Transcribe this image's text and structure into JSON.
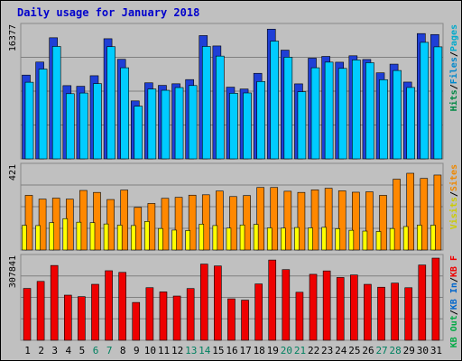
{
  "chart_data": [
    {
      "type": "bar",
      "title": "Daily usage for January 2018",
      "categories": [
        "1",
        "2",
        "3",
        "4",
        "5",
        "6",
        "7",
        "8",
        "9",
        "10",
        "11",
        "12",
        "13",
        "14",
        "15",
        "16",
        "17",
        "18",
        "19",
        "20",
        "21",
        "22",
        "23",
        "24",
        "25",
        "26",
        "27",
        "28",
        "29",
        "30",
        "31"
      ],
      "weekend_indices": [
        5,
        6,
        12,
        13,
        19,
        20,
        26,
        27
      ],
      "ylabel_parts": [
        "Pages",
        "/",
        "Files",
        "/",
        "Hits"
      ],
      "ymax_label": "16377",
      "ymax": 16377,
      "series": [
        {
          "name": "Hits",
          "color": "#1f3fd6",
          "values": [
            10410,
            12030,
            15050,
            9100,
            9020,
            10330,
            14930,
            12370,
            7200,
            9450,
            9130,
            9330,
            9850,
            15320,
            14030,
            8910,
            8680,
            10630,
            16120,
            13510,
            9320,
            12510,
            12730,
            12010,
            12810,
            12350,
            10690,
            11770,
            9540,
            15570,
            15450
          ]
        },
        {
          "name": "Files",
          "color": "#00ccff",
          "values": [
            9520,
            11160,
            13970,
            8100,
            8180,
            9350,
            13940,
            11320,
            6540,
            8680,
            8520,
            8860,
            9110,
            13970,
            12770,
            8150,
            8190,
            9610,
            14630,
            12630,
            8340,
            11320,
            12020,
            11240,
            12290,
            11950,
            9840,
            10980,
            8870,
            14480,
            13920
          ]
        },
        {
          "name": "Pages",
          "color": "#00ffff",
          "values": [
            0,
            0,
            0,
            0,
            0,
            0,
            0,
            0,
            0,
            0,
            0,
            0,
            0,
            0,
            0,
            0,
            0,
            0,
            0,
            0,
            0,
            0,
            0,
            0,
            0,
            0,
            0,
            0,
            0,
            0,
            0
          ]
        }
      ]
    },
    {
      "type": "bar",
      "categories": [
        "1",
        "2",
        "3",
        "4",
        "5",
        "6",
        "7",
        "8",
        "9",
        "10",
        "11",
        "12",
        "13",
        "14",
        "15",
        "16",
        "17",
        "18",
        "19",
        "20",
        "21",
        "22",
        "23",
        "24",
        "25",
        "26",
        "27",
        "28",
        "29",
        "30",
        "31"
      ],
      "ylabel_parts": [
        "Sites",
        "/",
        "Visits"
      ],
      "ymax_label": "421",
      "ymax": 421,
      "series": [
        {
          "name": "Visits",
          "color": "#ff8800",
          "values": [
            277,
            258,
            263,
            258,
            302,
            292,
            256,
            304,
            216,
            236,
            262,
            267,
            278,
            280,
            299,
            271,
            276,
            317,
            317,
            298,
            292,
            305,
            313,
            300,
            293,
            295,
            277,
            359,
            389,
            363,
            380
          ]
        },
        {
          "name": "Sites",
          "color": "#ffff00",
          "values": [
            125,
            124,
            139,
            159,
            141,
            139,
            132,
            126,
            124,
            145,
            109,
            101,
            99,
            131,
            124,
            111,
            127,
            130,
            112,
            111,
            114,
            112,
            115,
            108,
            100,
            96,
            94,
            109,
            119,
            126,
            126
          ]
        }
      ]
    },
    {
      "type": "bar",
      "categories": [
        "1",
        "2",
        "3",
        "4",
        "5",
        "6",
        "7",
        "8",
        "9",
        "10",
        "11",
        "12",
        "13",
        "14",
        "15",
        "16",
        "17",
        "18",
        "19",
        "20",
        "21",
        "22",
        "23",
        "24",
        "25",
        "26",
        "27",
        "28",
        "29",
        "30",
        "31"
      ],
      "ylabel_parts": [
        "KB F",
        "/",
        "KB In",
        "/",
        "KB Out"
      ],
      "ymax_label": "307841",
      "ymax": 307841,
      "series": [
        {
          "name": "KB F",
          "color": "#ee0000",
          "values": [
            194200,
            220600,
            280300,
            169100,
            163500,
            209700,
            260600,
            254400,
            141700,
            197100,
            181200,
            165700,
            193800,
            285400,
            278500,
            155300,
            150300,
            211100,
            300700,
            264800,
            179900,
            247200,
            259900,
            235300,
            244600,
            209600,
            198800,
            214100,
            196900,
            282000,
            307800
          ]
        }
      ]
    }
  ]
}
